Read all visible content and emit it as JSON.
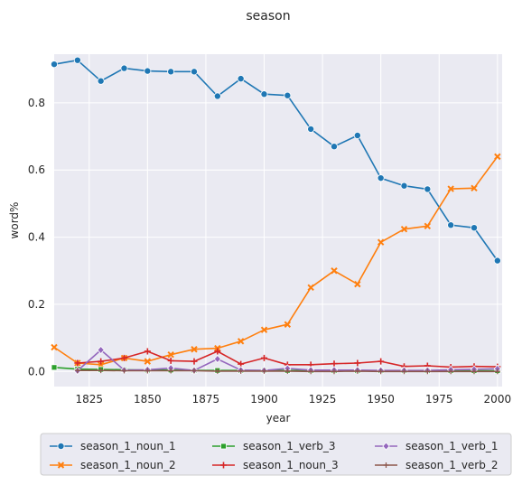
{
  "chart_data": {
    "type": "line",
    "title": "season",
    "xlabel": "year",
    "ylabel": "word%",
    "xlim": [
      1810,
      2002
    ],
    "ylim": [
      -0.045,
      0.945
    ],
    "xticks": [
      1825,
      1850,
      1875,
      1900,
      1925,
      1950,
      1975,
      2000
    ],
    "yticks": [
      0.0,
      0.2,
      0.4,
      0.6,
      0.8
    ],
    "grid": true,
    "legend_placement": "bottom",
    "x": [
      1810,
      1820,
      1830,
      1840,
      1850,
      1860,
      1870,
      1880,
      1890,
      1900,
      1910,
      1920,
      1930,
      1940,
      1950,
      1960,
      1970,
      1980,
      1990,
      2000
    ],
    "series": [
      {
        "name": "season_1_noun_1",
        "color": "#1f77b4",
        "marker": "circle",
        "values": [
          0.915,
          0.927,
          0.865,
          0.903,
          0.895,
          0.893,
          0.893,
          0.82,
          0.872,
          0.826,
          0.822,
          0.722,
          0.67,
          0.703,
          0.576,
          0.553,
          0.543,
          0.436,
          0.428,
          0.33
        ]
      },
      {
        "name": "season_1_noun_2",
        "color": "#ff7f0e",
        "marker": "x",
        "values": [
          0.072,
          0.025,
          0.02,
          0.04,
          0.03,
          0.05,
          0.066,
          0.069,
          0.09,
          0.124,
          0.14,
          0.25,
          0.3,
          0.26,
          0.385,
          0.424,
          0.433,
          0.544,
          0.546,
          0.64
        ]
      },
      {
        "name": "season_1_verb_3",
        "color": "#2ca02c",
        "marker": "square",
        "values": [
          0.012,
          0.007,
          0.006,
          0.005,
          0.004,
          0.004,
          0.003,
          0.003,
          0.003,
          0.003,
          0.003,
          0.002,
          0.002,
          0.002,
          0.002,
          0.002,
          0.002,
          0.002,
          0.002,
          0.002
        ]
      },
      {
        "name": "season_1_noun_3",
        "color": "#d62728",
        "marker": "plus",
        "values": [
          null,
          0.025,
          0.03,
          0.04,
          0.06,
          0.032,
          0.03,
          0.06,
          0.022,
          0.04,
          0.02,
          0.02,
          0.023,
          0.025,
          0.03,
          0.015,
          0.017,
          0.013,
          0.015,
          0.014
        ]
      },
      {
        "name": "season_1_verb_1",
        "color": "#9467bd",
        "marker": "diamond",
        "values": [
          null,
          0.002,
          0.064,
          0.004,
          0.005,
          0.01,
          0.003,
          0.037,
          0.004,
          0.003,
          0.009,
          0.004,
          0.004,
          0.004,
          0.003,
          0.003,
          0.003,
          0.005,
          0.006,
          0.008
        ]
      },
      {
        "name": "season_1_verb_2",
        "color": "#8c564b",
        "marker": "thin-plus",
        "values": [
          null,
          0.003,
          0.003,
          0.002,
          0.002,
          0.002,
          0.002,
          0.001,
          0.001,
          0.001,
          0.001,
          0.0,
          0.0,
          0.001,
          0.0,
          0.0,
          0.0,
          0.0,
          0.0,
          0.0
        ]
      }
    ]
  }
}
